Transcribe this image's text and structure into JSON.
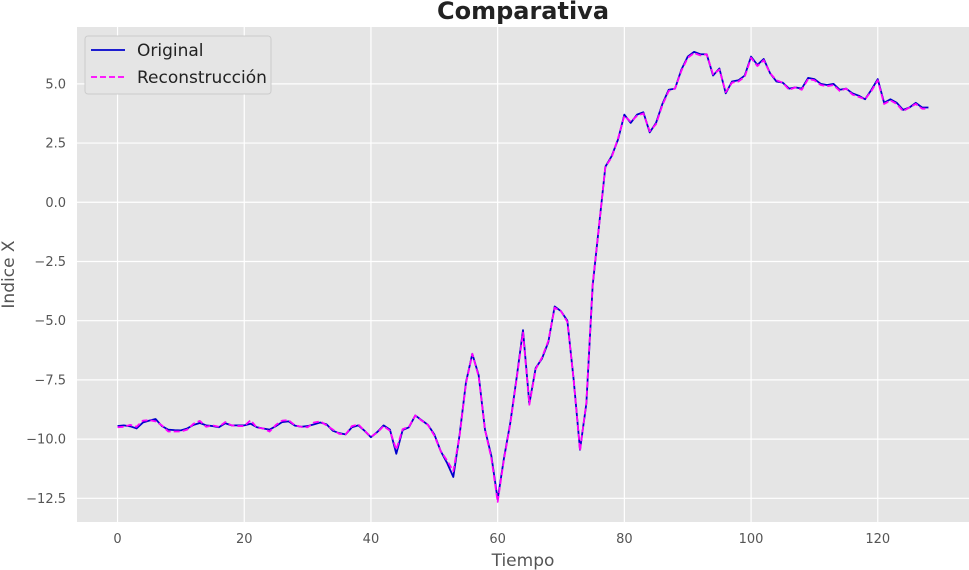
{
  "chart_data": {
    "type": "line",
    "title": "Comparativa",
    "xlabel": "Tiempo",
    "ylabel": "Indice X",
    "xlim": [
      -6.4,
      134.4
    ],
    "ylim": [
      -13.5,
      7.4
    ],
    "xticks": [
      0,
      20,
      40,
      60,
      80,
      100,
      120
    ],
    "yticks": [
      -12.5,
      -10.0,
      -7.5,
      -5.0,
      -2.5,
      0.0,
      2.5,
      5.0
    ],
    "ytick_labels": [
      "−12.5",
      "−10.0",
      "−7.5",
      "−5.0",
      "−2.5",
      "0.0",
      "2.5",
      "5.0"
    ],
    "grid": true,
    "legend_position": "top-left",
    "x_start": 0,
    "x_step": 1,
    "series": [
      {
        "name": "Original",
        "color": "#0000cc",
        "style": "solid",
        "values": [
          -9.45,
          -9.42,
          -9.46,
          -9.55,
          -9.3,
          -9.22,
          -9.15,
          -9.45,
          -9.6,
          -9.62,
          -9.63,
          -9.55,
          -9.4,
          -9.32,
          -9.42,
          -9.45,
          -9.5,
          -9.33,
          -9.42,
          -9.42,
          -9.42,
          -9.35,
          -9.5,
          -9.55,
          -9.6,
          -9.45,
          -9.28,
          -9.25,
          -9.43,
          -9.48,
          -9.45,
          -9.38,
          -9.3,
          -9.38,
          -9.65,
          -9.75,
          -9.8,
          -9.5,
          -9.42,
          -9.65,
          -9.92,
          -9.7,
          -9.42,
          -9.6,
          -10.62,
          -9.62,
          -9.5,
          -9.0,
          -9.2,
          -9.4,
          -9.8,
          -10.5,
          -11.0,
          -11.6,
          -9.8,
          -7.6,
          -6.4,
          -7.3,
          -9.6,
          -10.7,
          -12.55,
          -10.8,
          -9.3,
          -7.4,
          -5.4,
          -8.5,
          -7.0,
          -6.6,
          -5.9,
          -4.4,
          -4.6,
          -5.0,
          -7.5,
          -10.45,
          -8.5,
          -3.5,
          -1.0,
          1.5,
          1.95,
          2.65,
          3.7,
          3.35,
          3.7,
          3.8,
          2.95,
          3.35,
          4.15,
          4.75,
          4.8,
          5.6,
          6.15,
          6.35,
          6.25,
          6.25,
          5.35,
          5.65,
          4.6,
          5.1,
          5.15,
          5.35,
          6.15,
          5.8,
          6.05,
          5.45,
          5.1,
          5.05,
          4.8,
          4.85,
          4.8,
          5.25,
          5.2,
          5.0,
          4.95,
          5.0,
          4.75,
          4.8,
          4.6,
          4.5,
          4.35,
          4.75,
          5.2,
          4.2,
          4.35,
          4.2,
          3.9,
          4.0,
          4.2,
          4.0,
          4.0
        ]
      },
      {
        "name": "Reconstrucción",
        "color": "#ff00ff",
        "style": "dashed",
        "values": [
          -9.5,
          -9.48,
          -9.4,
          -9.48,
          -9.22,
          -9.2,
          -9.25,
          -9.42,
          -9.68,
          -9.68,
          -9.68,
          -9.6,
          -9.35,
          -9.23,
          -9.48,
          -9.42,
          -9.48,
          -9.28,
          -9.42,
          -9.45,
          -9.45,
          -9.2,
          -9.52,
          -9.55,
          -9.68,
          -9.4,
          -9.22,
          -9.2,
          -9.42,
          -9.48,
          -9.5,
          -9.3,
          -9.25,
          -9.42,
          -9.6,
          -9.78,
          -9.8,
          -9.45,
          -9.38,
          -9.65,
          -9.9,
          -9.72,
          -9.45,
          -9.65,
          -10.45,
          -9.58,
          -9.48,
          -9.0,
          -9.22,
          -9.4,
          -9.85,
          -10.5,
          -10.9,
          -11.35,
          -9.85,
          -7.65,
          -6.4,
          -7.35,
          -9.6,
          -10.8,
          -12.65,
          -10.85,
          -9.35,
          -7.45,
          -5.5,
          -8.55,
          -7.05,
          -6.55,
          -5.85,
          -4.45,
          -4.6,
          -5.05,
          -7.5,
          -10.5,
          -8.45,
          -3.45,
          -1.0,
          1.5,
          1.9,
          2.7,
          3.65,
          3.4,
          3.65,
          3.75,
          3.0,
          3.3,
          4.1,
          4.7,
          4.8,
          5.55,
          6.1,
          6.3,
          6.2,
          6.25,
          5.4,
          5.6,
          4.65,
          5.05,
          5.1,
          5.3,
          6.1,
          5.75,
          6.0,
          5.45,
          5.15,
          5.05,
          4.75,
          4.85,
          4.75,
          5.2,
          5.15,
          4.95,
          4.9,
          4.95,
          4.7,
          4.8,
          4.55,
          4.45,
          4.35,
          4.7,
          5.15,
          4.15,
          4.3,
          4.15,
          3.85,
          4.0,
          4.15,
          3.95,
          3.95
        ]
      }
    ]
  },
  "colors": {
    "plot_background": "#e5e5e5",
    "grid": "#ffffff"
  }
}
